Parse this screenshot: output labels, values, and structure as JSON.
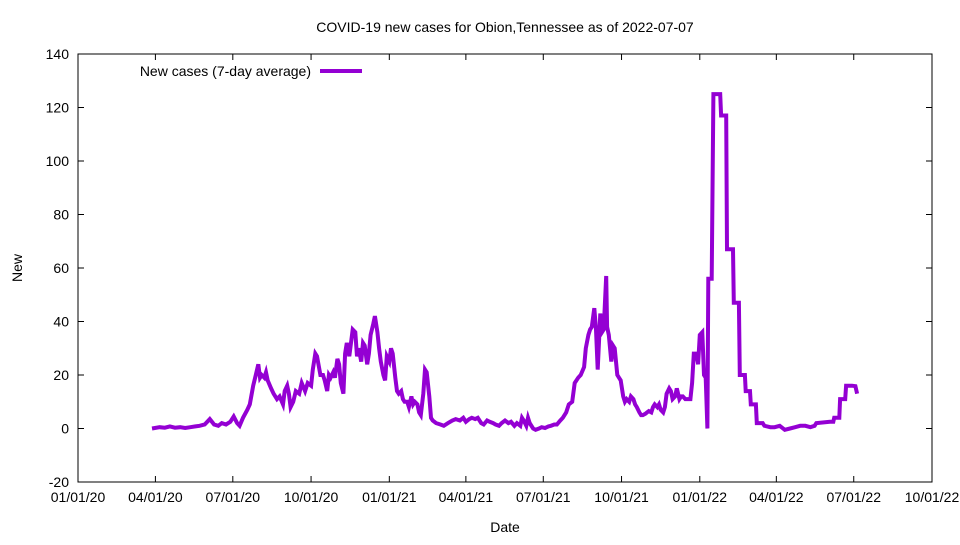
{
  "chart_data": {
    "type": "line",
    "title": "COVID-19 new cases for Obion,Tennessee as of 2022-07-07",
    "xlabel": "Date",
    "ylabel": "New",
    "x_unit": "days since 2020-01-01",
    "xlim": [
      0,
      1004
    ],
    "ylim": [
      -20,
      140
    ],
    "yticks": [
      -20,
      0,
      20,
      40,
      60,
      80,
      100,
      120,
      140
    ],
    "xticks": [
      {
        "day": 0,
        "label": "01/01/20"
      },
      {
        "day": 91,
        "label": "04/01/20"
      },
      {
        "day": 182,
        "label": "07/01/20"
      },
      {
        "day": 274,
        "label": "10/01/20"
      },
      {
        "day": 366,
        "label": "01/01/21"
      },
      {
        "day": 456,
        "label": "04/01/21"
      },
      {
        "day": 547,
        "label": "07/01/21"
      },
      {
        "day": 639,
        "label": "10/01/21"
      },
      {
        "day": 731,
        "label": "01/01/22"
      },
      {
        "day": 821,
        "label": "04/01/22"
      },
      {
        "day": 912,
        "label": "07/01/22"
      },
      {
        "day": 1004,
        "label": "10/01/22"
      }
    ],
    "grid": false,
    "legend_position": "top-left",
    "series": [
      {
        "name": "New cases (7-day average)",
        "color": "#9400d3",
        "points": [
          [
            87,
            0
          ],
          [
            96,
            0.5
          ],
          [
            102,
            0.3
          ],
          [
            108,
            0.8
          ],
          [
            114,
            0.3
          ],
          [
            120,
            0.5
          ],
          [
            126,
            0.2
          ],
          [
            132,
            0.5
          ],
          [
            138,
            0.8
          ],
          [
            143,
            1
          ],
          [
            149,
            1.5
          ],
          [
            155,
            3.5
          ],
          [
            160,
            1.5
          ],
          [
            165,
            1
          ],
          [
            169,
            2
          ],
          [
            174,
            1.5
          ],
          [
            179,
            2.5
          ],
          [
            183,
            4.5
          ],
          [
            187,
            2
          ],
          [
            190,
            1
          ],
          [
            194,
            4
          ],
          [
            199,
            7
          ],
          [
            202,
            9
          ],
          [
            206,
            16
          ],
          [
            209,
            20
          ],
          [
            212,
            24
          ],
          [
            214,
            19
          ],
          [
            216,
            20
          ],
          [
            219,
            19
          ],
          [
            221,
            21
          ],
          [
            223,
            18
          ],
          [
            227,
            15
          ],
          [
            230,
            13
          ],
          [
            234,
            11
          ],
          [
            237,
            12
          ],
          [
            241,
            9
          ],
          [
            243,
            14
          ],
          [
            246,
            16
          ],
          [
            248,
            13
          ],
          [
            250,
            8
          ],
          [
            253,
            10
          ],
          [
            256,
            14
          ],
          [
            260,
            13
          ],
          [
            263,
            17
          ],
          [
            267,
            14
          ],
          [
            270,
            17
          ],
          [
            274,
            16
          ],
          [
            276,
            22
          ],
          [
            279,
            28
          ],
          [
            281,
            27
          ],
          [
            285,
            20
          ],
          [
            288,
            20
          ],
          [
            290,
            18
          ],
          [
            293,
            14
          ],
          [
            295,
            20
          ],
          [
            297,
            19
          ],
          [
            300,
            21
          ],
          [
            302,
            19
          ],
          [
            305,
            26
          ],
          [
            307,
            24
          ],
          [
            309,
            17
          ],
          [
            312,
            13
          ],
          [
            314,
            28
          ],
          [
            316,
            32
          ],
          [
            319,
            27
          ],
          [
            321,
            32
          ],
          [
            323,
            37
          ],
          [
            326,
            36
          ],
          [
            328,
            27
          ],
          [
            330,
            30
          ],
          [
            333,
            25
          ],
          [
            335,
            32
          ],
          [
            337,
            31
          ],
          [
            340,
            24
          ],
          [
            342,
            28
          ],
          [
            344,
            35
          ],
          [
            347,
            39
          ],
          [
            349,
            42
          ],
          [
            352,
            36
          ],
          [
            354,
            30
          ],
          [
            356,
            25
          ],
          [
            359,
            20
          ],
          [
            361,
            18
          ],
          [
            363,
            27
          ],
          [
            366,
            25
          ],
          [
            368,
            30
          ],
          [
            370,
            28
          ],
          [
            373,
            19
          ],
          [
            375,
            14
          ],
          [
            377,
            13
          ],
          [
            380,
            14
          ],
          [
            382,
            11
          ],
          [
            384,
            10
          ],
          [
            387,
            10
          ],
          [
            389,
            8
          ],
          [
            392,
            12
          ],
          [
            394,
            9
          ],
          [
            396,
            10
          ],
          [
            399,
            9
          ],
          [
            401,
            6
          ],
          [
            403,
            5
          ],
          [
            406,
            13
          ],
          [
            408,
            22
          ],
          [
            410,
            21
          ],
          [
            413,
            12
          ],
          [
            415,
            4
          ],
          [
            417,
            3
          ],
          [
            421,
            2
          ],
          [
            426,
            1.5
          ],
          [
            430,
            1
          ],
          [
            435,
            2
          ],
          [
            440,
            3
          ],
          [
            444,
            3.5
          ],
          [
            449,
            3
          ],
          [
            453,
            4
          ],
          [
            456,
            2.5
          ],
          [
            460,
            3.5
          ],
          [
            463,
            4
          ],
          [
            467,
            3.5
          ],
          [
            470,
            4
          ],
          [
            474,
            2
          ],
          [
            477,
            1.5
          ],
          [
            481,
            3
          ],
          [
            484,
            2.5
          ],
          [
            488,
            2
          ],
          [
            491,
            1.5
          ],
          [
            495,
            1
          ],
          [
            498,
            2
          ],
          [
            502,
            3
          ],
          [
            506,
            2
          ],
          [
            509,
            2.5
          ],
          [
            513,
            1
          ],
          [
            516,
            2
          ],
          [
            520,
            1
          ],
          [
            522,
            4
          ],
          [
            524,
            3
          ],
          [
            527,
            1
          ],
          [
            529,
            4
          ],
          [
            531,
            2
          ],
          [
            535,
            0
          ],
          [
            538,
            -0.5
          ],
          [
            542,
            0
          ],
          [
            545,
            0.5
          ],
          [
            549,
            0.2
          ],
          [
            553,
            0.8
          ],
          [
            556,
            1
          ],
          [
            560,
            1.5
          ],
          [
            563,
            1.5
          ],
          [
            567,
            3
          ],
          [
            570,
            4
          ],
          [
            574,
            6
          ],
          [
            577,
            9
          ],
          [
            581,
            10
          ],
          [
            584,
            17
          ],
          [
            588,
            19
          ],
          [
            591,
            20
          ],
          [
            595,
            23
          ],
          [
            597,
            30
          ],
          [
            600,
            35
          ],
          [
            602,
            37
          ],
          [
            604,
            38
          ],
          [
            607,
            45
          ],
          [
            609,
            37
          ],
          [
            611,
            22
          ],
          [
            614,
            43
          ],
          [
            616,
            36
          ],
          [
            618,
            37
          ],
          [
            621,
            57
          ],
          [
            622,
            38
          ],
          [
            624,
            35
          ],
          [
            627,
            25
          ],
          [
            629,
            31
          ],
          [
            631,
            30
          ],
          [
            634,
            20
          ],
          [
            636,
            19
          ],
          [
            638,
            18
          ],
          [
            641,
            12
          ],
          [
            643,
            10
          ],
          [
            645,
            11
          ],
          [
            648,
            10
          ],
          [
            650,
            12
          ],
          [
            653,
            11
          ],
          [
            655,
            9
          ],
          [
            657,
            8
          ],
          [
            660,
            6
          ],
          [
            662,
            5
          ],
          [
            664,
            5
          ],
          [
            667,
            5.5
          ],
          [
            669,
            6
          ],
          [
            671,
            6.5
          ],
          [
            674,
            6
          ],
          [
            676,
            8
          ],
          [
            678,
            9
          ],
          [
            681,
            8
          ],
          [
            683,
            9
          ],
          [
            685,
            7
          ],
          [
            688,
            6
          ],
          [
            690,
            8
          ],
          [
            692,
            13
          ],
          [
            695,
            15
          ],
          [
            697,
            14
          ],
          [
            699,
            11
          ],
          [
            702,
            12
          ],
          [
            704,
            15
          ],
          [
            707,
            11
          ],
          [
            709,
            12
          ],
          [
            711,
            12
          ],
          [
            714,
            11
          ],
          [
            717,
            11
          ],
          [
            720,
            11
          ],
          [
            722,
            17
          ],
          [
            724,
            28
          ],
          [
            727,
            28
          ],
          [
            729,
            24
          ],
          [
            731,
            35
          ],
          [
            734,
            36
          ],
          [
            736,
            20
          ],
          [
            738,
            19
          ],
          [
            740,
            0
          ],
          [
            741,
            56
          ],
          [
            745,
            56
          ],
          [
            747,
            125
          ],
          [
            755,
            125
          ],
          [
            756,
            117
          ],
          [
            762,
            117
          ],
          [
            763,
            67
          ],
          [
            770,
            67
          ],
          [
            771,
            47
          ],
          [
            777,
            47
          ],
          [
            778,
            20
          ],
          [
            784,
            20
          ],
          [
            785,
            14
          ],
          [
            790,
            14
          ],
          [
            791,
            9
          ],
          [
            797,
            9
          ],
          [
            798,
            2
          ],
          [
            805,
            2
          ],
          [
            807,
            1
          ],
          [
            814,
            0.5
          ],
          [
            819,
            0.5
          ],
          [
            825,
            1
          ],
          [
            831,
            -0.5
          ],
          [
            837,
            0
          ],
          [
            843,
            0.5
          ],
          [
            849,
            1
          ],
          [
            855,
            1
          ],
          [
            861,
            0.5
          ],
          [
            866,
            1
          ],
          [
            868,
            2
          ],
          [
            884,
            2.5
          ],
          [
            888,
            2.5
          ],
          [
            889,
            4
          ],
          [
            895,
            4
          ],
          [
            896,
            11
          ],
          [
            902,
            11
          ],
          [
            903,
            16
          ],
          [
            910,
            16
          ],
          [
            914,
            15.8
          ],
          [
            916,
            13
          ]
        ]
      }
    ]
  }
}
